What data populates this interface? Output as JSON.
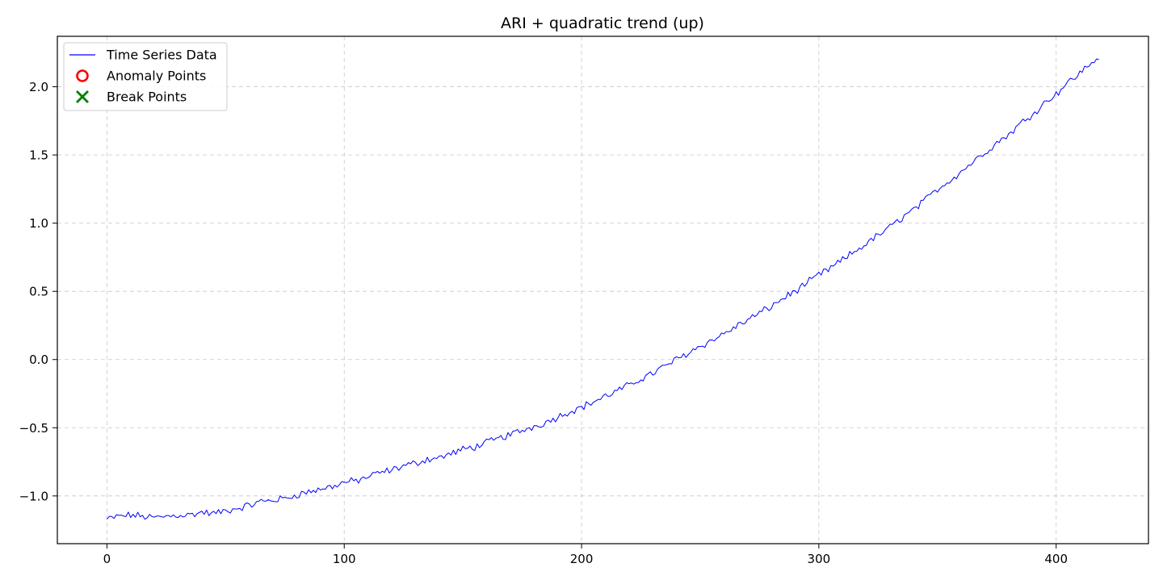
{
  "chart_data": {
    "type": "line",
    "title": "ARI + quadratic trend (up)",
    "xlabel": "",
    "ylabel": "",
    "xlim": [
      -20.9,
      438.9
    ],
    "ylim": [
      -1.35,
      2.37
    ],
    "x_ticks": [
      0,
      100,
      200,
      300,
      400
    ],
    "x_tick_labels": [
      "0",
      "100",
      "200",
      "300",
      "400"
    ],
    "y_ticks": [
      -1.0,
      -0.5,
      0.0,
      0.5,
      1.0,
      1.5,
      2.0
    ],
    "y_tick_labels": [
      "−1.0",
      "−0.5",
      "0.0",
      "0.5",
      "1.0",
      "1.5",
      "2.0"
    ],
    "grid": true,
    "legend_position": "top-left",
    "legend": [
      {
        "label": "Time Series Data",
        "marker": "line",
        "color": "#0000ff"
      },
      {
        "label": "Anomaly Points",
        "marker": "circle",
        "color": "#ff0000"
      },
      {
        "label": "Break Points",
        "marker": "x",
        "color": "#008000"
      }
    ],
    "series": [
      {
        "name": "Time Series Data",
        "color": "#0000ff",
        "quadratic_fit": {
          "a": 1.96e-05,
          "b": 2e-05,
          "c": -1.156
        },
        "x": [
          0,
          5,
          10,
          15,
          20,
          25,
          30,
          35,
          40,
          45,
          50,
          55,
          60,
          65,
          70,
          75,
          80,
          85,
          90,
          95,
          100,
          105,
          110,
          115,
          120,
          125,
          130,
          135,
          140,
          145,
          150,
          155,
          160,
          165,
          170,
          175,
          180,
          185,
          190,
          195,
          200,
          205,
          210,
          215,
          220,
          225,
          230,
          235,
          240,
          245,
          250,
          255,
          260,
          265,
          270,
          275,
          280,
          285,
          290,
          295,
          300,
          305,
          310,
          315,
          320,
          325,
          330,
          335,
          340,
          345,
          350,
          355,
          360,
          365,
          370,
          375,
          380,
          385,
          390,
          395,
          400,
          405,
          410,
          415,
          418
        ],
        "values": [
          -1.17,
          -1.15,
          -1.14,
          -1.15,
          -1.16,
          -1.15,
          -1.14,
          -1.14,
          -1.12,
          -1.13,
          -1.11,
          -1.09,
          -1.07,
          -1.04,
          -1.03,
          -1.02,
          -0.99,
          -0.97,
          -0.95,
          -0.93,
          -0.9,
          -0.89,
          -0.86,
          -0.83,
          -0.81,
          -0.78,
          -0.76,
          -0.73,
          -0.72,
          -0.69,
          -0.66,
          -0.64,
          -0.61,
          -0.58,
          -0.55,
          -0.52,
          -0.49,
          -0.46,
          -0.42,
          -0.38,
          -0.35,
          -0.31,
          -0.27,
          -0.23,
          -0.19,
          -0.14,
          -0.1,
          -0.05,
          0.0,
          0.05,
          0.1,
          0.14,
          0.19,
          0.24,
          0.29,
          0.34,
          0.39,
          0.45,
          0.5,
          0.56,
          0.62,
          0.67,
          0.73,
          0.79,
          0.85,
          0.91,
          0.97,
          1.04,
          1.1,
          1.17,
          1.25,
          1.31,
          1.38,
          1.45,
          1.52,
          1.59,
          1.65,
          1.73,
          1.8,
          1.88,
          1.95,
          2.03,
          2.1,
          2.18,
          2.2
        ]
      }
    ],
    "anomaly_points": [],
    "break_points": []
  }
}
